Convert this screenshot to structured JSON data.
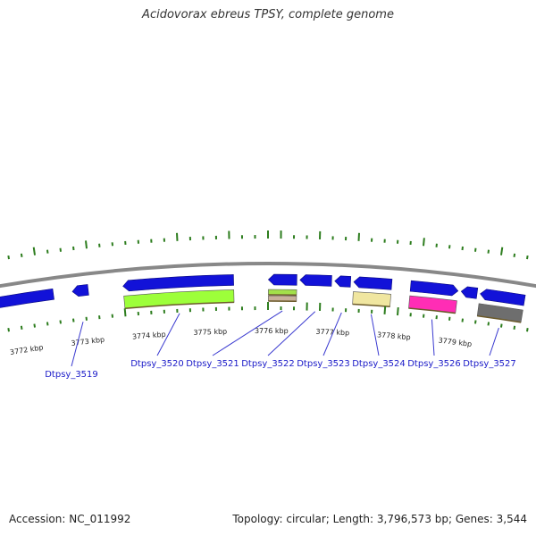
{
  "header": {
    "title": "Acidovorax ebreus TPSY, complete genome"
  },
  "footer": {
    "accession": "Accession: NC_011992",
    "stats": "Topology: circular; Length: 3,796,573 bp; Genes: 3,544"
  },
  "colors": {
    "backbone": "#888888",
    "gc_tick": "#2d7d1e",
    "gene_forward": "#1212d8",
    "label": "#1a1ac8",
    "leader": "#3a3ad0"
  },
  "ticks": [
    "3772 kbp",
    "3773 kbp",
    "3774 kbp",
    "3775 kbp",
    "3776 kbp",
    "3777 kbp",
    "3778 kbp",
    "3779 kbp"
  ],
  "genes": [
    {
      "label": "",
      "color": "#1212d8",
      "strand": "rev",
      "start_kbp": 3771.0,
      "end_kbp": 3772.55
    },
    {
      "label": "Dtpsy_3519",
      "color": "#1212d8",
      "strand": "rev",
      "start_kbp": 3772.85,
      "end_kbp": 3773.1
    },
    {
      "label": "Dtpsy_3520",
      "color": "#1212d8",
      "strand": "rev",
      "start_kbp": 3773.65,
      "end_kbp": 3775.4
    },
    {
      "label": "",
      "color": "#9dff3a",
      "strand": "rev",
      "start_kbp": 3773.65,
      "end_kbp": 3775.4,
      "lane": "inner"
    },
    {
      "label": "Dtpsy_3521",
      "color": "#1212d8",
      "strand": "rev",
      "start_kbp": 3775.95,
      "end_kbp": 3776.4
    },
    {
      "label": "",
      "color": "#a3e04a",
      "strand": "rev",
      "start_kbp": 3775.95,
      "end_kbp": 3776.4,
      "lane": "inner-a"
    },
    {
      "label": "Dtpsy_3522",
      "color": "#1212d8",
      "strand": "rev",
      "start_kbp": 3776.45,
      "end_kbp": 3776.95
    },
    {
      "label": "",
      "color": "#c8b09a",
      "strand": "rev",
      "start_kbp": 3775.95,
      "end_kbp": 3776.4,
      "lane": "inner-b"
    },
    {
      "label": "Dtpsy_3523",
      "color": "#1212d8",
      "strand": "rev",
      "start_kbp": 3777.0,
      "end_kbp": 3777.25
    },
    {
      "label": "Dtpsy_3524",
      "color": "#1212d8",
      "strand": "rev",
      "start_kbp": 3777.3,
      "end_kbp": 3777.9
    },
    {
      "label": "",
      "color": "#f0e6a0",
      "strand": "rev",
      "start_kbp": 3777.3,
      "end_kbp": 3777.9,
      "lane": "inner"
    },
    {
      "label": "Dtpsy_3526",
      "color": "#1212d8",
      "strand": "fwd",
      "start_kbp": 3778.2,
      "end_kbp": 3778.95
    },
    {
      "label": "",
      "color": "#ff2db5",
      "strand": "rev",
      "start_kbp": 3778.2,
      "end_kbp": 3778.95,
      "lane": "inner"
    },
    {
      "label": "",
      "color": "#1212d8",
      "strand": "rev",
      "start_kbp": 3779.0,
      "end_kbp": 3779.25
    },
    {
      "label": "Dtpsy_3527",
      "color": "#1212d8",
      "strand": "rev",
      "start_kbp": 3779.3,
      "end_kbp": 3780.0
    },
    {
      "label": "",
      "color": "#6e6e6e",
      "strand": "rev",
      "start_kbp": 3779.3,
      "end_kbp": 3780.0,
      "lane": "inner"
    }
  ]
}
